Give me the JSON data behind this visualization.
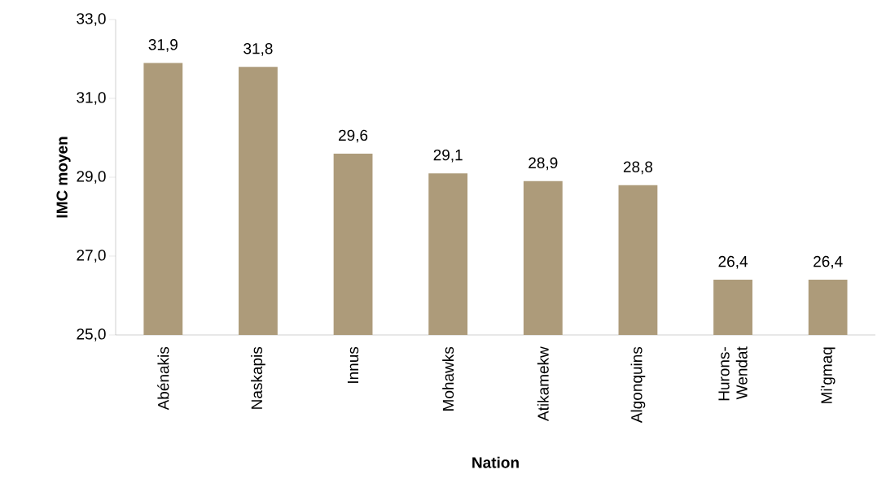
{
  "chart_data": {
    "type": "bar",
    "xlabel": "Nation",
    "ylabel": "IMC moyen",
    "categories": [
      "Abénakis",
      "Naskapis",
      "Innus",
      "Mohawks",
      "Atikamekw",
      "Algonquins",
      "Hurons-Wendat",
      "Mi'gmaq"
    ],
    "values": [
      31.9,
      31.8,
      29.6,
      29.1,
      28.9,
      28.8,
      26.4,
      26.4
    ],
    "value_labels": [
      "31,9",
      "31,8",
      "29,6",
      "29,1",
      "28,9",
      "28,8",
      "26,4",
      "26,4"
    ],
    "color": "#ad9b7a",
    "ylim": [
      25,
      33
    ],
    "yticks": [
      {
        "value": 25,
        "label": "25,0"
      },
      {
        "value": 27,
        "label": "27,0"
      },
      {
        "value": 29,
        "label": "29,0"
      },
      {
        "value": 31,
        "label": "31,0"
      },
      {
        "value": 33,
        "label": "33,0"
      }
    ],
    "grid": false
  }
}
